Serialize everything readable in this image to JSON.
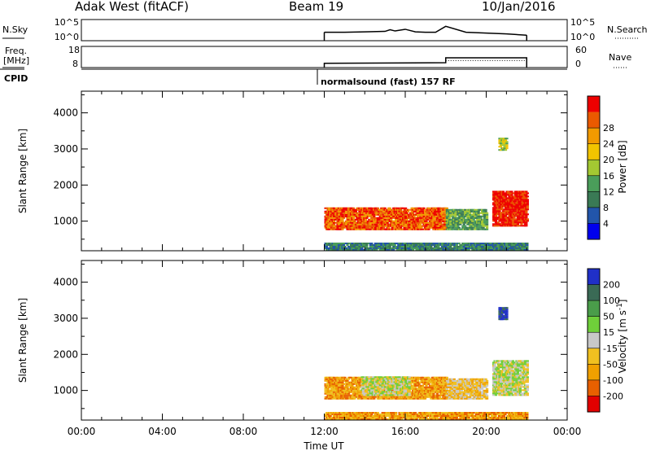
{
  "header": {
    "station": "Adak West (fitACF)",
    "beam": "Beam 19",
    "date": "10/Jan/2016"
  },
  "summary": {
    "nsky_label": "N.Sky",
    "nsky_ticks": [
      "10^5",
      "10^0"
    ],
    "nsearch_label": "N.Search",
    "freq_label_line1": "Freq.",
    "freq_label_line2": "[MHz]",
    "freq_ticks": [
      "18",
      "8"
    ],
    "nave_label": "Nave",
    "nave_ticks": [
      "60",
      "0"
    ],
    "cpid_label": "CPID",
    "cpid_text": "normalsound (fast) 157 RF"
  },
  "colors": {
    "power_scale": [
      "#0000ee",
      "#2255aa",
      "#3a7a55",
      "#4a9d5a",
      "#a3c832",
      "#f2c400",
      "#f29a00",
      "#ea5a00",
      "#ee0000"
    ],
    "velocity_scale": [
      "#2030c8",
      "#3a6a55",
      "#4a9d4a",
      "#6fcf3a",
      "#c8c8c8",
      "#f0c020",
      "#f0a000",
      "#e86000",
      "#e20000"
    ]
  },
  "chart_data": [
    {
      "type": "line",
      "title": "N.Sky / N.Search",
      "ylabel": "N.Sky",
      "yscale": "log",
      "yticks": [
        "10^0",
        "10^5"
      ],
      "series": [
        {
          "name": "N.Sky",
          "x": [
            "12:00",
            "13:00",
            "14:00",
            "15:00",
            "15:15",
            "15:30",
            "16:00",
            "16:30",
            "17:00",
            "17:30",
            "18:00",
            "19:00",
            "20:00",
            "21:00",
            "22:00"
          ],
          "values": [
            2.0,
            2.0,
            2.1,
            2.2,
            2.6,
            2.3,
            2.7,
            2.1,
            2.0,
            2.0,
            3.4,
            2.0,
            1.8,
            1.6,
            1.3
          ]
        }
      ],
      "xlim": [
        "12:00",
        "22:00"
      ]
    },
    {
      "type": "line",
      "title": "Freq / Nave",
      "ylabel": "Freq. [MHz]",
      "yticks": [
        "8",
        "18"
      ],
      "y2label": "Nave",
      "y2ticks": [
        "0",
        "60"
      ],
      "series": [
        {
          "name": "Freq.",
          "x": [
            "12:00",
            "18:00",
            "18:00",
            "22:00"
          ],
          "values": [
            10.0,
            10.3,
            12.6,
            12.6
          ]
        },
        {
          "name": "Nave",
          "x": [
            "18:00",
            "22:00"
          ],
          "values": [
            20,
            20
          ]
        }
      ]
    },
    {
      "type": "heatmap",
      "title": "Power",
      "xlabel": "",
      "ylabel": "Slant Range [km]",
      "xticks": [
        "00:00",
        "04:00",
        "08:00",
        "12:00",
        "16:00",
        "20:00",
        "00:00"
      ],
      "yticks": [
        1000,
        2000,
        3000,
        4000
      ],
      "ylim": [
        180,
        4600
      ],
      "colorbar_label": "Power [dB]",
      "colorbar_ticks": [
        4,
        8,
        12,
        16,
        20,
        24,
        28
      ],
      "bands": [
        {
          "t0": 12.0,
          "t1": 18.0,
          "r0": 750,
          "r1": 1350,
          "level": 7
        },
        {
          "t0": 18.0,
          "t1": 20.0,
          "r0": 750,
          "r1": 1300,
          "level": 3
        },
        {
          "t0": 20.3,
          "t1": 22.0,
          "r0": 850,
          "r1": 1800,
          "level": 8
        },
        {
          "t0": 20.6,
          "t1": 21.0,
          "r0": 2950,
          "r1": 3300,
          "level": 4
        },
        {
          "t0": 12.0,
          "t1": 22.0,
          "r0": 180,
          "r1": 400,
          "level": 2
        }
      ]
    },
    {
      "type": "heatmap",
      "title": "Velocity",
      "xlabel": "Time UT",
      "ylabel": "Slant Range [km]",
      "xticks": [
        "00:00",
        "04:00",
        "08:00",
        "12:00",
        "16:00",
        "20:00",
        "00:00"
      ],
      "yticks": [
        1000,
        2000,
        3000,
        4000
      ],
      "ylim": [
        180,
        4600
      ],
      "colorbar_label": "Velocity [m s^-1]",
      "colorbar_ticks": [
        200,
        100,
        50,
        15,
        -15,
        -50,
        -100,
        -200
      ],
      "bands": [
        {
          "t0": 12.0,
          "t1": 18.0,
          "r0": 750,
          "r1": 1350,
          "level": 6
        },
        {
          "t0": 13.8,
          "t1": 16.2,
          "r0": 850,
          "r1": 1350,
          "level": 4
        },
        {
          "t0": 18.0,
          "t1": 20.0,
          "r0": 750,
          "r1": 1300,
          "level": 5
        },
        {
          "t0": 20.3,
          "t1": 22.0,
          "r0": 850,
          "r1": 1800,
          "level": 4
        },
        {
          "t0": 20.6,
          "t1": 21.0,
          "r0": 2950,
          "r1": 3300,
          "level": 0
        },
        {
          "t0": 12.0,
          "t1": 22.0,
          "r0": 180,
          "r1": 400,
          "level": 6
        }
      ]
    }
  ]
}
